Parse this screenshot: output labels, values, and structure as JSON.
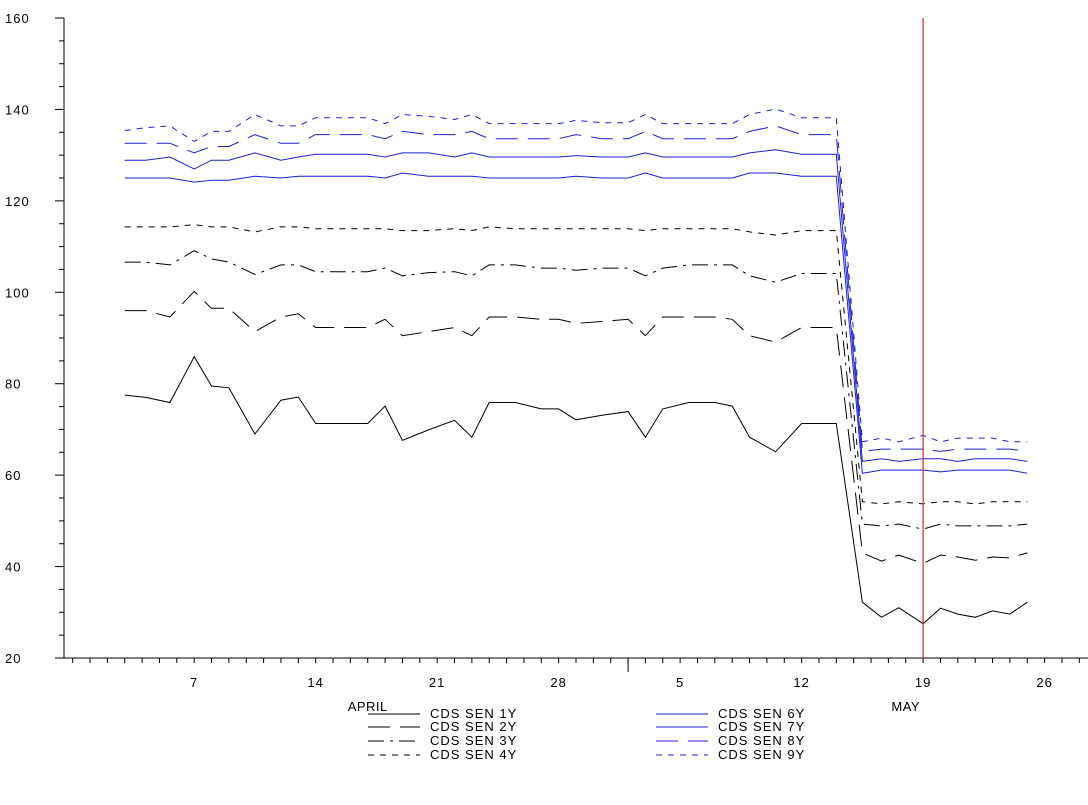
{
  "chart_data": {
    "type": "line",
    "title": "",
    "xlabel": "",
    "ylabel": "",
    "ylim": [
      20,
      160
    ],
    "y_ticks": [
      20,
      40,
      60,
      80,
      100,
      120,
      140,
      160
    ],
    "y_tick_labels": [
      "20",
      "40",
      "60",
      "80",
      "100",
      "120",
      "140",
      "160"
    ],
    "x_axis": {
      "unit": "day index from first observation",
      "range": [
        0,
        52
      ],
      "tick_labels": [
        {
          "x": 4,
          "label": "7"
        },
        {
          "x": 11,
          "label": "14"
        },
        {
          "x": 18,
          "label": "21"
        },
        {
          "x": 25,
          "label": "28"
        },
        {
          "x": 32,
          "label": "5"
        },
        {
          "x": 39,
          "label": "12"
        },
        {
          "x": 46,
          "label": "19"
        },
        {
          "x": 53,
          "label": "26"
        }
      ],
      "month_labels": [
        {
          "x": 14,
          "label": "APRIL"
        },
        {
          "x": 45,
          "label": "MAY"
        }
      ],
      "month_divider_x": 29
    },
    "event_line": {
      "x": 46,
      "color": "#d62728"
    },
    "grid": false,
    "legend_position": "bottom-center",
    "x": [
      0,
      1.2,
      2.6,
      4,
      5,
      6,
      7.5,
      9,
      10,
      11,
      12.5,
      14,
      15,
      16,
      17.5,
      19,
      20,
      21,
      22.5,
      24,
      25,
      26,
      27.5,
      29,
      30,
      31,
      32.5,
      34,
      35,
      36,
      37.5,
      39,
      40,
      41,
      42.5,
      43.6,
      44.6,
      46,
      47,
      48,
      49,
      50,
      51,
      52
    ],
    "series": [
      {
        "name": "CDS SEN 1Y",
        "color": "#000000",
        "dash": "solid",
        "values": [
          77.5,
          77,
          75.9,
          85.9,
          79.5,
          79.1,
          69,
          76.4,
          77.1,
          71.3,
          71.3,
          71.3,
          75.1,
          67.6,
          69.9,
          72,
          68.3,
          75.9,
          75.9,
          74.5,
          74.5,
          72.1,
          73.1,
          73.9,
          68.3,
          74.5,
          75.9,
          75.9,
          75.1,
          68.3,
          65.1,
          71.3,
          71.3,
          71.3,
          32.2,
          28.9,
          31,
          27.5,
          30.9,
          29.6,
          28.9,
          30.3,
          29.6,
          32.2
        ]
      },
      {
        "name": "CDS SEN 2Y",
        "color": "#000000",
        "dash": "22,10",
        "values": [
          96,
          96,
          94.6,
          100.2,
          96.5,
          96.5,
          91.4,
          94.6,
          95.3,
          92.3,
          92.3,
          92.3,
          94.1,
          90.5,
          91.4,
          92.3,
          90.5,
          94.6,
          94.6,
          94.1,
          94.1,
          93.2,
          93.6,
          94.1,
          90.5,
          94.6,
          94.6,
          94.6,
          94.1,
          90.5,
          89.1,
          92.3,
          92.3,
          92.3,
          43,
          41.2,
          42.5,
          40.7,
          42.5,
          42.1,
          41.4,
          42.1,
          41.9,
          43
        ]
      },
      {
        "name": "CDS SEN 3Y",
        "color": "#000000",
        "dash": "16,6,3,6",
        "values": [
          106.6,
          106.6,
          106,
          109.1,
          107.3,
          106.6,
          103.9,
          106,
          106,
          104.5,
          104.5,
          104.5,
          105.3,
          103.6,
          104.3,
          104.5,
          103.6,
          106,
          106,
          105.3,
          105.3,
          104.8,
          105.3,
          105.3,
          103.6,
          105.3,
          106,
          106,
          106,
          103.6,
          102.2,
          104.1,
          104.1,
          104.1,
          49.3,
          48.9,
          49.3,
          48.2,
          49.3,
          48.9,
          48.9,
          48.9,
          48.9,
          49.3
        ]
      },
      {
        "name": "CDS SEN 4Y",
        "color": "#000000",
        "dash": "6,6",
        "values": [
          114.3,
          114.3,
          114.3,
          114.8,
          114.3,
          114.3,
          113.2,
          114.3,
          114.3,
          113.9,
          113.9,
          113.9,
          113.9,
          113.5,
          113.5,
          113.9,
          113.5,
          114.3,
          113.9,
          113.9,
          113.9,
          113.9,
          113.9,
          113.9,
          113.5,
          113.9,
          113.9,
          113.9,
          113.9,
          113.2,
          112.5,
          113.5,
          113.5,
          113.5,
          54.2,
          53.7,
          54.2,
          53.7,
          54.2,
          54.2,
          53.7,
          54.2,
          54.2,
          54.2
        ]
      },
      {
        "name": "CDS SEN 6Y",
        "color": "#1f1fd6",
        "dash": "solid",
        "values": [
          125,
          125,
          125,
          124.1,
          124.5,
          124.5,
          125.4,
          125,
          125.4,
          125.4,
          125.4,
          125.4,
          125,
          126.1,
          125.4,
          125.4,
          125.4,
          125,
          125,
          125,
          125,
          125.4,
          125,
          125,
          126.1,
          125,
          125,
          125,
          125,
          126.1,
          126.1,
          125.4,
          125.4,
          125.4,
          60.4,
          61.1,
          61.1,
          61.1,
          60.7,
          61.1,
          61.1,
          61.1,
          61.1,
          60.4
        ]
      },
      {
        "name": "CDS SEN 7Y",
        "color": "#1f1fd6",
        "dash": "solid",
        "values": [
          128.9,
          128.9,
          129.6,
          127,
          128.9,
          128.9,
          130.5,
          128.9,
          129.6,
          130.2,
          130.2,
          130.2,
          129.6,
          130.5,
          130.5,
          129.6,
          130.5,
          129.6,
          129.6,
          129.6,
          129.6,
          129.9,
          129.6,
          129.6,
          130.5,
          129.6,
          129.6,
          129.6,
          129.6,
          130.5,
          131.2,
          130.2,
          130.2,
          130.2,
          63,
          63.6,
          63,
          63.6,
          63.6,
          63,
          63.6,
          63.6,
          63.6,
          63
        ]
      },
      {
        "name": "CDS SEN 8Y",
        "color": "#1f1fd6",
        "dash": "22,10",
        "values": [
          132.6,
          132.6,
          132.6,
          130.5,
          131.9,
          131.9,
          134.5,
          132.6,
          132.6,
          134.5,
          134.5,
          134.5,
          133.6,
          135.2,
          134.5,
          134.5,
          135.2,
          133.6,
          133.6,
          133.6,
          133.6,
          134.5,
          133.6,
          133.6,
          135.2,
          133.6,
          133.6,
          133.6,
          133.6,
          135.2,
          136.4,
          134.5,
          134.5,
          134.5,
          65.2,
          65.7,
          65.7,
          65.7,
          65.2,
          65.7,
          65.7,
          65.7,
          65.7,
          65.2
        ]
      },
      {
        "name": "CDS SEN 9Y",
        "color": "#1f1fd6",
        "dash": "6,6",
        "values": [
          135.4,
          136,
          136.4,
          133,
          135.2,
          135.2,
          138.9,
          136.4,
          136.4,
          138.2,
          138.2,
          138.2,
          136.9,
          138.9,
          138.5,
          137.8,
          138.9,
          136.9,
          136.9,
          136.9,
          136.9,
          137.6,
          137.1,
          137.1,
          138.9,
          136.9,
          136.9,
          136.9,
          136.9,
          138.9,
          140.1,
          138.2,
          138.2,
          138.2,
          67.3,
          68.1,
          67.3,
          68.7,
          67.3,
          68.1,
          68.1,
          68.1,
          67.3,
          67.3
        ]
      }
    ],
    "legend_columns": [
      [
        "CDS SEN 1Y",
        "CDS SEN 2Y",
        "CDS SEN 3Y",
        "CDS SEN 4Y"
      ],
      [
        "CDS SEN 6Y",
        "CDS SEN 7Y",
        "CDS SEN 8Y",
        "CDS SEN 9Y"
      ]
    ]
  }
}
